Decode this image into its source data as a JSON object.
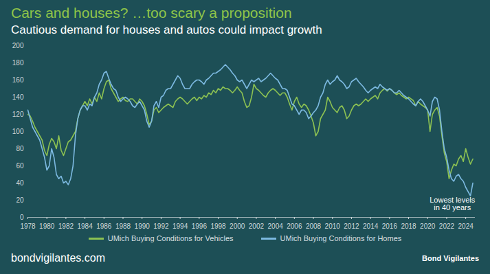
{
  "chart_data": {
    "type": "line",
    "title": "Cars and houses? …too scary a proposition",
    "subtitle": "Cautious demand for houses and autos could impact growth",
    "x": [
      1978,
      1978.25,
      1978.5,
      1978.75,
      1979,
      1979.25,
      1979.5,
      1979.75,
      1980,
      1980.25,
      1980.5,
      1980.75,
      1981,
      1981.25,
      1981.5,
      1981.75,
      1982,
      1982.25,
      1982.5,
      1982.75,
      1983,
      1983.25,
      1983.5,
      1983.75,
      1984,
      1984.25,
      1984.5,
      1984.75,
      1985,
      1985.25,
      1985.5,
      1985.75,
      1986,
      1986.25,
      1986.5,
      1986.75,
      1987,
      1987.25,
      1987.5,
      1987.75,
      1988,
      1988.25,
      1988.5,
      1988.75,
      1989,
      1989.25,
      1989.5,
      1989.75,
      1990,
      1990.25,
      1990.5,
      1990.75,
      1991,
      1991.25,
      1991.5,
      1991.75,
      1992,
      1992.25,
      1992.5,
      1992.75,
      1993,
      1993.25,
      1993.5,
      1993.75,
      1994,
      1994.25,
      1994.5,
      1994.75,
      1995,
      1995.25,
      1995.5,
      1995.75,
      1996,
      1996.25,
      1996.5,
      1996.75,
      1997,
      1997.25,
      1997.5,
      1997.75,
      1998,
      1998.25,
      1998.5,
      1998.75,
      1999,
      1999.25,
      1999.5,
      1999.75,
      2000,
      2000.25,
      2000.5,
      2000.75,
      2001,
      2001.25,
      2001.5,
      2001.75,
      2002,
      2002.25,
      2002.5,
      2002.75,
      2003,
      2003.25,
      2003.5,
      2003.75,
      2004,
      2004.25,
      2004.5,
      2004.75,
      2005,
      2005.25,
      2005.5,
      2005.75,
      2006,
      2006.25,
      2006.5,
      2006.75,
      2007,
      2007.25,
      2007.5,
      2007.75,
      2008,
      2008.25,
      2008.5,
      2008.75,
      2009,
      2009.25,
      2009.5,
      2009.75,
      2010,
      2010.25,
      2010.5,
      2010.75,
      2011,
      2011.25,
      2011.5,
      2011.75,
      2012,
      2012.25,
      2012.5,
      2012.75,
      2013,
      2013.25,
      2013.5,
      2013.75,
      2014,
      2014.25,
      2014.5,
      2014.75,
      2015,
      2015.25,
      2015.5,
      2015.75,
      2016,
      2016.25,
      2016.5,
      2016.75,
      2017,
      2017.25,
      2017.5,
      2017.75,
      2018,
      2018.25,
      2018.5,
      2018.75,
      2019,
      2019.25,
      2019.5,
      2019.75,
      2020,
      2020.25,
      2020.5,
      2020.75,
      2021,
      2021.25,
      2021.5,
      2021.75,
      2022,
      2022.25,
      2022.5,
      2022.75,
      2023,
      2023.25,
      2023.5,
      2023.75,
      2024,
      2024.25,
      2024.5,
      2024.75
    ],
    "xlim": [
      1978,
      2025
    ],
    "xticks": [
      1978,
      1980,
      1982,
      1984,
      1986,
      1988,
      1990,
      1992,
      1994,
      1996,
      1998,
      2000,
      2002,
      2004,
      2006,
      2008,
      2010,
      2012,
      2014,
      2016,
      2018,
      2020,
      2022,
      2024
    ],
    "ylim": [
      0,
      200
    ],
    "yticks": [
      0,
      20,
      40,
      60,
      80,
      100,
      120,
      140,
      160,
      180,
      200
    ],
    "grid": false,
    "legend": "bottom",
    "series": [
      {
        "name": "UMich Buying Conditions for Vehicles",
        "color": "#8cc152",
        "values": [
          120,
          118,
          112,
          105,
          100,
          95,
          90,
          78,
          72,
          85,
          92,
          88,
          80,
          95,
          78,
          72,
          80,
          88,
          90,
          95,
          100,
          115,
          125,
          130,
          135,
          130,
          138,
          132,
          140,
          135,
          145,
          138,
          150,
          158,
          160,
          150,
          145,
          140,
          135,
          138,
          140,
          136,
          135,
          138,
          138,
          135,
          132,
          138,
          135,
          130,
          120,
          108,
          112,
          125,
          128,
          122,
          125,
          128,
          130,
          132,
          130,
          128,
          135,
          138,
          140,
          138,
          135,
          132,
          135,
          138,
          140,
          136,
          140,
          138,
          142,
          140,
          145,
          143,
          148,
          145,
          150,
          148,
          152,
          150,
          150,
          148,
          145,
          148,
          152,
          148,
          145,
          135,
          128,
          130,
          140,
          155,
          150,
          148,
          145,
          142,
          140,
          145,
          148,
          150,
          148,
          145,
          142,
          145,
          145,
          140,
          132,
          125,
          135,
          140,
          132,
          128,
          132,
          130,
          125,
          118,
          110,
          95,
          100,
          115,
          120,
          125,
          140,
          135,
          128,
          125,
          122,
          128,
          130,
          125,
          115,
          118,
          125,
          130,
          132,
          130,
          132,
          135,
          138,
          135,
          138,
          140,
          142,
          138,
          145,
          148,
          150,
          147,
          150,
          148,
          145,
          143,
          145,
          142,
          140,
          138,
          140,
          138,
          136,
          130,
          135,
          132,
          130,
          128,
          125,
          100,
          120,
          125,
          128,
          118,
          95,
          75,
          65,
          45,
          55,
          62,
          60,
          68,
          72,
          65,
          80,
          70,
          62,
          68
        ]
      },
      {
        "name": "UMich Buying Conditions for Homes",
        "color": "#7cb9e0",
        "values": [
          125,
          115,
          105,
          100,
          95,
          90,
          80,
          70,
          55,
          60,
          80,
          70,
          50,
          45,
          48,
          40,
          42,
          38,
          45,
          60,
          95,
          115,
          125,
          130,
          130,
          125,
          132,
          130,
          140,
          145,
          155,
          160,
          168,
          170,
          162,
          155,
          150,
          148,
          140,
          135,
          138,
          140,
          138,
          135,
          130,
          128,
          132,
          135,
          130,
          125,
          112,
          105,
          112,
          130,
          135,
          128,
          140,
          142,
          148,
          150,
          150,
          155,
          160,
          165,
          162,
          155,
          150,
          150,
          150,
          155,
          158,
          160,
          160,
          158,
          155,
          160,
          162,
          165,
          168,
          168,
          170,
          172,
          175,
          178,
          175,
          172,
          168,
          165,
          160,
          158,
          160,
          155,
          150,
          155,
          160,
          158,
          160,
          162,
          158,
          160,
          162,
          165,
          168,
          165,
          162,
          160,
          155,
          150,
          150,
          148,
          140,
          132,
          130,
          125,
          120,
          125,
          125,
          122,
          115,
          118,
          122,
          125,
          130,
          140,
          145,
          155,
          160,
          155,
          158,
          160,
          165,
          160,
          158,
          155,
          150,
          152,
          158,
          160,
          162,
          158,
          155,
          152,
          148,
          145,
          148,
          150,
          152,
          150,
          155,
          152,
          150,
          148,
          150,
          148,
          145,
          145,
          148,
          145,
          142,
          140,
          138,
          135,
          132,
          130,
          135,
          138,
          135,
          130,
          125,
          118,
          135,
          140,
          138,
          125,
          100,
          80,
          70,
          55,
          45,
          42,
          48,
          50,
          45,
          42,
          35,
          30,
          25,
          40
        ]
      }
    ],
    "annotations": [
      {
        "text": "Lowest levels\nin 40 years",
        "x": 2022.6,
        "y": 16
      }
    ],
    "source": "bondvigilantes.com",
    "logo": "Bond Vigilantes"
  }
}
